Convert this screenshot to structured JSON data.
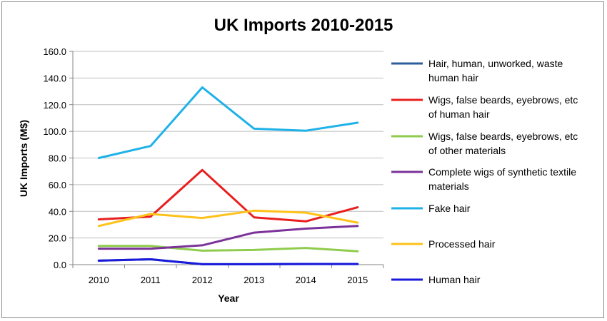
{
  "chart_data": {
    "type": "line",
    "title": "UK Imports 2010-2015",
    "xlabel": "Year",
    "ylabel": "UK Imports (M$)",
    "categories": [
      "2010",
      "2011",
      "2012",
      "2013",
      "2014",
      "2015"
    ],
    "ylim": [
      0,
      160
    ],
    "ytick_labels": [
      "0.0",
      "20.0",
      "40.0",
      "60.0",
      "80.0",
      "100.0",
      "120.0",
      "140.0",
      "160.0"
    ],
    "grid": "horizontal",
    "legend_position": "right",
    "series": [
      {
        "name": "Hair, human, unworked, waste human hair",
        "legend_lines": [
          "Hair, human, unworked, waste",
          "human hair"
        ],
        "color": "#2e5d9c",
        "values": [
          3.0,
          4.0,
          0.3,
          0.3,
          0.5,
          0.5
        ]
      },
      {
        "name": "Wigs, false beards, eyebrows, etc of human hair",
        "legend_lines": [
          "Wigs, false beards, eyebrows, etc",
          "of human hair"
        ],
        "color": "#e81f1f",
        "values": [
          34.0,
          36.0,
          71.0,
          35.5,
          32.5,
          43.0
        ]
      },
      {
        "name": "Wigs, false beards, eyebrows, etc of other materials",
        "legend_lines": [
          "Wigs, false beards, eyebrows, etc",
          "of other materials"
        ],
        "color": "#8fcc4d",
        "values": [
          14.0,
          14.0,
          10.5,
          11.0,
          12.5,
          10.0
        ]
      },
      {
        "name": "Complete wigs of synthetic textile materials",
        "legend_lines": [
          "Complete wigs of synthetic textile",
          "materials"
        ],
        "color": "#7a3399",
        "values": [
          12.0,
          12.0,
          14.5,
          24.0,
          27.0,
          29.0
        ]
      },
      {
        "name": "Fake hair",
        "legend_lines": [
          "Fake hair"
        ],
        "color": "#1fb2e8",
        "values": [
          80.0,
          89.0,
          133.0,
          102.0,
          100.5,
          106.5
        ]
      },
      {
        "name": "Processed hair",
        "legend_lines": [
          "Processed hair"
        ],
        "color": "#ffc21a",
        "values": [
          29.0,
          38.0,
          35.0,
          40.5,
          39.0,
          31.5
        ]
      },
      {
        "name": "Human hair",
        "legend_lines": [
          "Human hair"
        ],
        "color": "#1a1adb",
        "values": [
          3.0,
          4.0,
          0.3,
          0.3,
          0.5,
          0.5
        ]
      }
    ]
  }
}
